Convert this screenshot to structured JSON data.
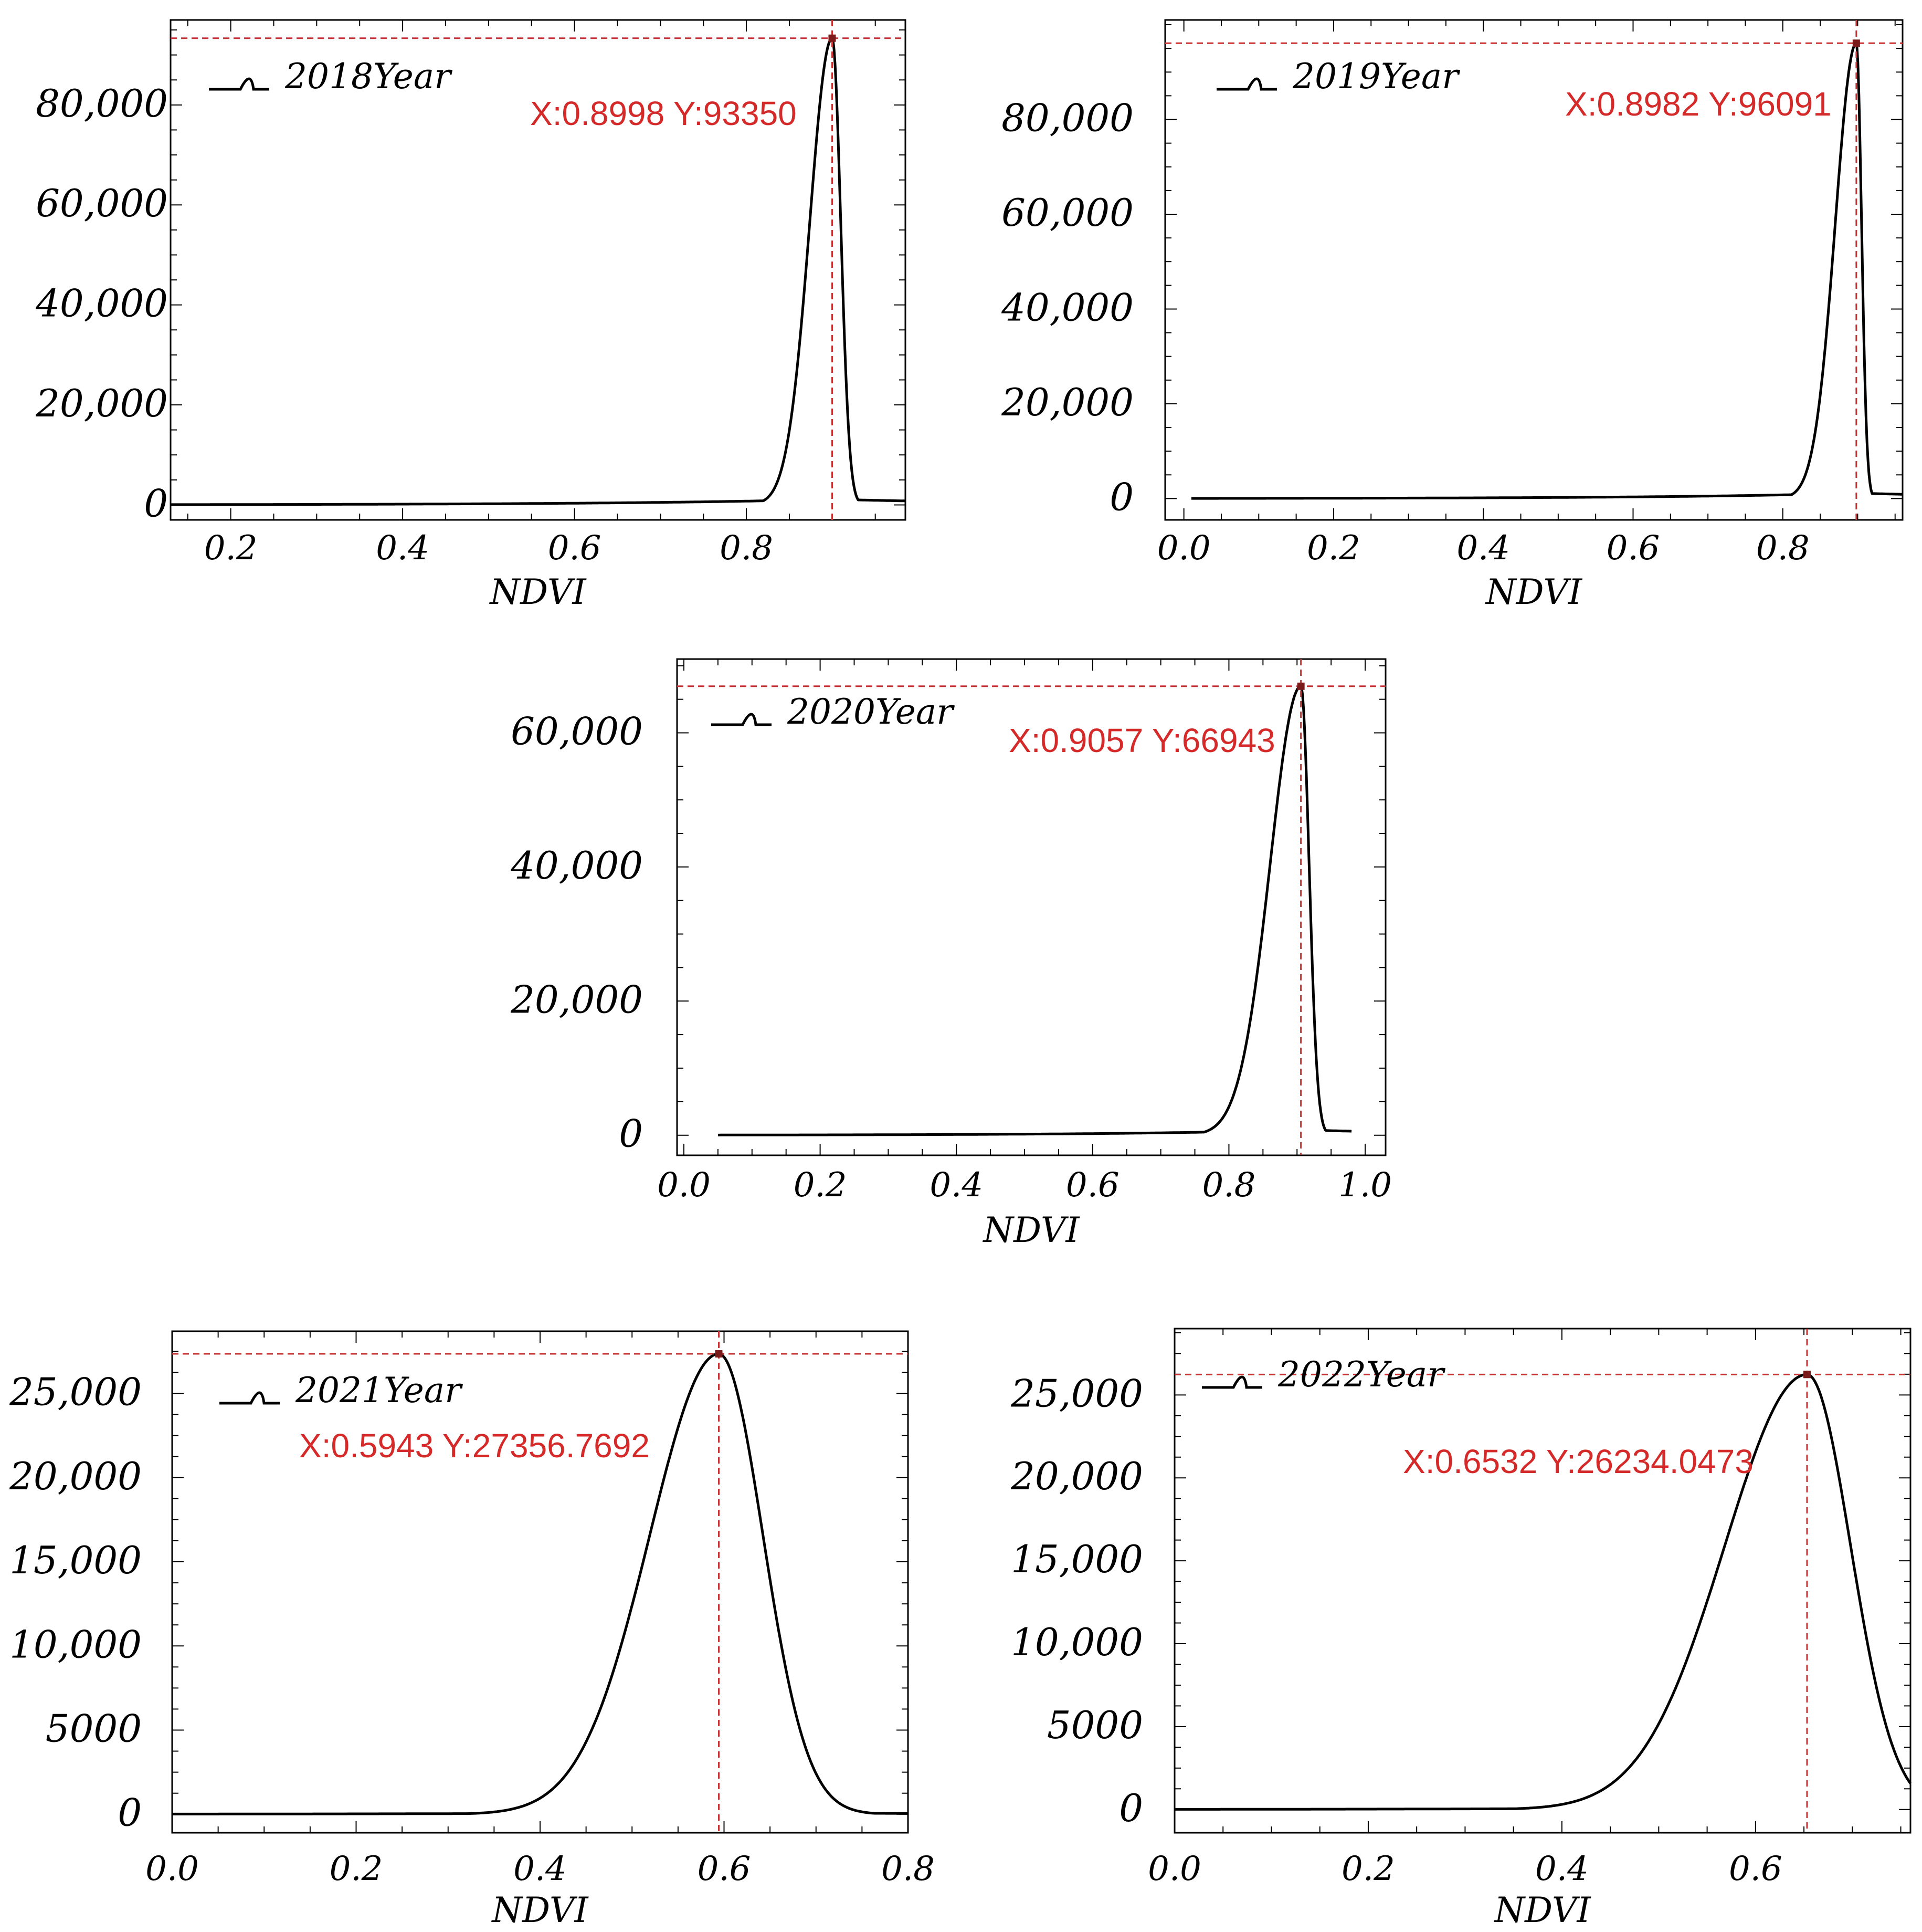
{
  "colors": {
    "curve": "#000000",
    "marker_lines": "#c83232",
    "annotation": "#d42a2a",
    "frame": "#000000"
  },
  "chart_data": [
    {
      "type": "line",
      "series": [
        {
          "name": "2018Year",
          "peak_x": 0.8998,
          "peak_y": 93350,
          "sigma_left": 0.026,
          "sigma_right": 0.01,
          "tail": 0.012
        }
      ],
      "annotation": "X:0.8998 Y:93350",
      "xlabel": "NDVI",
      "ylabel": "",
      "xlim": [
        0.13,
        0.985
      ],
      "ylim": [
        -3000,
        97000
      ],
      "xticks": [
        0.2,
        0.4,
        0.6,
        0.8
      ],
      "xtick_labels": [
        "0.2",
        "0.4",
        "0.6",
        "0.8"
      ],
      "yticks": [
        0,
        20000,
        40000,
        60000,
        80000
      ],
      "ytick_labels": [
        "0",
        "20,000",
        "40,000",
        "60,000",
        "80,000"
      ],
      "x_start": 0.13,
      "x_end": 0.985,
      "grid": false,
      "legend": "top-left"
    },
    {
      "type": "line",
      "series": [
        {
          "name": "2019Year",
          "peak_x": 0.8982,
          "peak_y": 96091,
          "sigma_left": 0.028,
          "sigma_right": 0.007,
          "tail": 0.012
        }
      ],
      "annotation": "X:0.8982 Y:96091",
      "xlabel": "NDVI",
      "ylabel": "",
      "xlim": [
        -0.025,
        0.96
      ],
      "ylim": [
        -4500,
        101000
      ],
      "xticks": [
        0.0,
        0.2,
        0.4,
        0.6,
        0.8
      ],
      "xtick_labels": [
        "0.0",
        "0.2",
        "0.4",
        "0.6",
        "0.8"
      ],
      "yticks": [
        0,
        20000,
        40000,
        60000,
        80000
      ],
      "ytick_labels": [
        "0",
        "20,000",
        "40,000",
        "60,000",
        "80,000"
      ],
      "x_start": 0.01,
      "x_end": 0.96,
      "grid": false,
      "legend": "top-left"
    },
    {
      "type": "line",
      "series": [
        {
          "name": "2020Year",
          "peak_x": 0.9057,
          "peak_y": 66943,
          "sigma_left": 0.045,
          "sigma_right": 0.012,
          "tail": 0.012
        }
      ],
      "annotation": "X:0.9057 Y:66943",
      "xlabel": "NDVI",
      "ylabel": "",
      "xlim": [
        -0.01,
        1.03
      ],
      "ylim": [
        -3000,
        71000
      ],
      "xticks": [
        0.0,
        0.2,
        0.4,
        0.6,
        0.8,
        1.0
      ],
      "xtick_labels": [
        "0.0",
        "0.2",
        "0.4",
        "0.6",
        "0.8",
        "1.0"
      ],
      "yticks": [
        0,
        20000,
        40000,
        60000
      ],
      "ytick_labels": [
        "0",
        "20,000",
        "40,000",
        "60,000"
      ],
      "x_start": 0.05,
      "x_end": 0.98,
      "grid": false,
      "legend": "top-left"
    },
    {
      "type": "line",
      "series": [
        {
          "name": "2021Year",
          "peak_x": 0.5943,
          "peak_y": 27356.7692,
          "sigma_left": 0.075,
          "sigma_right": 0.048,
          "tail": 0.004
        }
      ],
      "annotation": "X:0.5943 Y:27356.7692",
      "xlabel": "NDVI",
      "ylabel": "",
      "xlim": [
        0.0,
        0.8
      ],
      "ylim": [
        -1100,
        28700
      ],
      "xticks": [
        0.0,
        0.2,
        0.4,
        0.6,
        0.8
      ],
      "xtick_labels": [
        "0.0",
        "0.2",
        "0.4",
        "0.6",
        "0.8"
      ],
      "yticks": [
        0,
        5000,
        10000,
        15000,
        20000,
        25000
      ],
      "ytick_labels": [
        "0",
        "5000",
        "10,000",
        "15,000",
        "20,000",
        "25,000"
      ],
      "x_start": 0.0,
      "x_end": 0.8,
      "grid": false,
      "legend": "top-left"
    },
    {
      "type": "line",
      "series": [
        {
          "name": "2022Year",
          "peak_x": 0.6532,
          "peak_y": 26234.0473,
          "sigma_left": 0.085,
          "sigma_right": 0.045,
          "tail": 0.006
        }
      ],
      "annotation": "X:0.6532 Y:26234.0473",
      "xlabel": "NDVI",
      "ylabel": "",
      "xlim": [
        0.0,
        0.76
      ],
      "ylim": [
        -1400,
        29000
      ],
      "xticks": [
        0.0,
        0.2,
        0.4,
        0.6
      ],
      "xtick_labels": [
        "0.0",
        "0.2",
        "0.4",
        "0.6"
      ],
      "yticks": [
        0,
        5000,
        10000,
        15000,
        20000,
        25000
      ],
      "ytick_labels": [
        "0",
        "5000",
        "10,000",
        "15,000",
        "20,000",
        "25,000"
      ],
      "x_start": 0.0,
      "x_end": 0.76,
      "grid": false,
      "legend": "top-left"
    }
  ]
}
